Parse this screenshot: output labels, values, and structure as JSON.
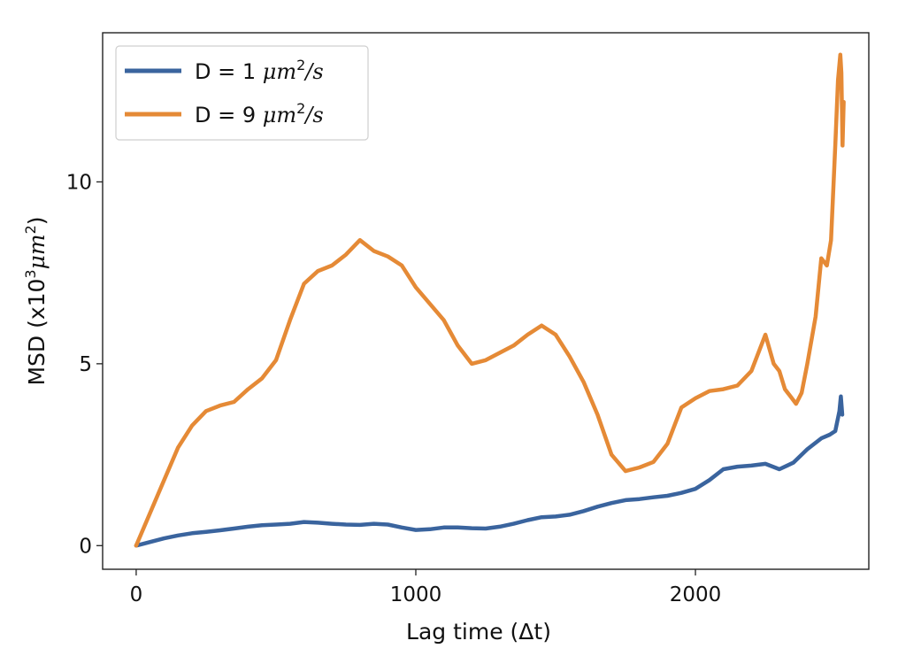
{
  "chart_data": {
    "type": "line",
    "xlabel": "Lag time (Δt)",
    "ylabel": {
      "prefix": "MSD (x10",
      "exp": "3",
      "unit": "μm",
      "unit_exp": "2",
      "suffix": ")"
    },
    "xlim": [
      -120,
      2620
    ],
    "ylim": [
      -0.65,
      14.1
    ],
    "xticks": [
      {
        "value": 0,
        "label": "0"
      },
      {
        "value": 1000,
        "label": "1000"
      },
      {
        "value": 2000,
        "label": "2000"
      }
    ],
    "yticks": [
      {
        "value": 0,
        "label": "0"
      },
      {
        "value": 5,
        "label": "5"
      },
      {
        "value": 10,
        "label": "10"
      }
    ],
    "grid": false,
    "legend": {
      "position": "top-left",
      "entries": [
        {
          "prefix": "D = 1 ",
          "unit": "μm",
          "exp": "2",
          "suffix": "/s",
          "color": "#3a649e"
        },
        {
          "prefix": "D = 9 ",
          "unit": "μm",
          "exp": "2",
          "suffix": "/s",
          "color": "#e58a36"
        }
      ]
    },
    "series": [
      {
        "color": "#3a649e",
        "points": [
          [
            0,
            0.0
          ],
          [
            50,
            0.1
          ],
          [
            100,
            0.2
          ],
          [
            150,
            0.28
          ],
          [
            200,
            0.34
          ],
          [
            250,
            0.38
          ],
          [
            300,
            0.42
          ],
          [
            350,
            0.47
          ],
          [
            400,
            0.52
          ],
          [
            450,
            0.56
          ],
          [
            500,
            0.58
          ],
          [
            550,
            0.6
          ],
          [
            600,
            0.65
          ],
          [
            650,
            0.63
          ],
          [
            700,
            0.6
          ],
          [
            750,
            0.58
          ],
          [
            800,
            0.57
          ],
          [
            850,
            0.6
          ],
          [
            900,
            0.58
          ],
          [
            950,
            0.5
          ],
          [
            1000,
            0.43
          ],
          [
            1050,
            0.45
          ],
          [
            1100,
            0.5
          ],
          [
            1150,
            0.5
          ],
          [
            1200,
            0.48
          ],
          [
            1250,
            0.47
          ],
          [
            1300,
            0.52
          ],
          [
            1350,
            0.6
          ],
          [
            1400,
            0.7
          ],
          [
            1450,
            0.78
          ],
          [
            1500,
            0.8
          ],
          [
            1550,
            0.85
          ],
          [
            1600,
            0.95
          ],
          [
            1650,
            1.07
          ],
          [
            1700,
            1.17
          ],
          [
            1750,
            1.25
          ],
          [
            1800,
            1.28
          ],
          [
            1850,
            1.33
          ],
          [
            1900,
            1.37
          ],
          [
            1950,
            1.45
          ],
          [
            2000,
            1.56
          ],
          [
            2050,
            1.8
          ],
          [
            2100,
            2.1
          ],
          [
            2150,
            2.17
          ],
          [
            2200,
            2.2
          ],
          [
            2250,
            2.25
          ],
          [
            2300,
            2.1
          ],
          [
            2350,
            2.28
          ],
          [
            2400,
            2.65
          ],
          [
            2450,
            2.95
          ],
          [
            2480,
            3.05
          ],
          [
            2500,
            3.15
          ],
          [
            2515,
            3.7
          ],
          [
            2520,
            4.1
          ],
          [
            2525,
            3.6
          ]
        ]
      },
      {
        "color": "#e58a36",
        "points": [
          [
            0,
            0.0
          ],
          [
            50,
            0.9
          ],
          [
            100,
            1.8
          ],
          [
            150,
            2.7
          ],
          [
            200,
            3.3
          ],
          [
            250,
            3.7
          ],
          [
            300,
            3.85
          ],
          [
            350,
            3.95
          ],
          [
            400,
            4.3
          ],
          [
            450,
            4.6
          ],
          [
            500,
            5.1
          ],
          [
            550,
            6.2
          ],
          [
            600,
            7.2
          ],
          [
            650,
            7.55
          ],
          [
            700,
            7.7
          ],
          [
            750,
            8.0
          ],
          [
            800,
            8.4
          ],
          [
            850,
            8.1
          ],
          [
            900,
            7.95
          ],
          [
            950,
            7.7
          ],
          [
            1000,
            7.1
          ],
          [
            1050,
            6.65
          ],
          [
            1100,
            6.2
          ],
          [
            1150,
            5.5
          ],
          [
            1200,
            5.0
          ],
          [
            1250,
            5.1
          ],
          [
            1300,
            5.3
          ],
          [
            1350,
            5.5
          ],
          [
            1400,
            5.8
          ],
          [
            1450,
            6.05
          ],
          [
            1500,
            5.8
          ],
          [
            1550,
            5.2
          ],
          [
            1600,
            4.5
          ],
          [
            1650,
            3.6
          ],
          [
            1700,
            2.5
          ],
          [
            1750,
            2.05
          ],
          [
            1800,
            2.15
          ],
          [
            1850,
            2.3
          ],
          [
            1900,
            2.8
          ],
          [
            1950,
            3.8
          ],
          [
            2000,
            4.05
          ],
          [
            2050,
            4.25
          ],
          [
            2100,
            4.3
          ],
          [
            2150,
            4.4
          ],
          [
            2200,
            4.8
          ],
          [
            2250,
            5.8
          ],
          [
            2280,
            5.0
          ],
          [
            2300,
            4.8
          ],
          [
            2320,
            4.3
          ],
          [
            2340,
            4.1
          ],
          [
            2360,
            3.9
          ],
          [
            2380,
            4.2
          ],
          [
            2400,
            5.0
          ],
          [
            2430,
            6.3
          ],
          [
            2450,
            7.9
          ],
          [
            2470,
            7.7
          ],
          [
            2485,
            8.4
          ],
          [
            2500,
            11.0
          ],
          [
            2510,
            12.8
          ],
          [
            2518,
            13.5
          ],
          [
            2522,
            13.0
          ],
          [
            2526,
            11.0
          ],
          [
            2530,
            12.2
          ]
        ]
      }
    ]
  }
}
